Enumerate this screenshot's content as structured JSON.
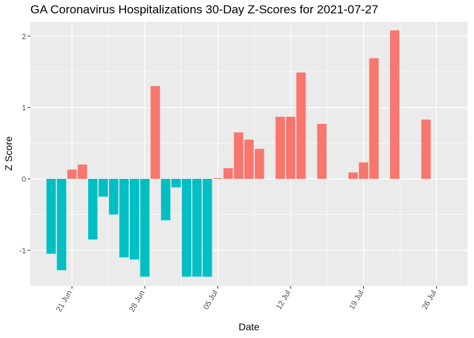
{
  "chart_data": {
    "type": "bar",
    "title": "GA Coronavirus Hospitalizations 30-Day Z-Scores for 2021-07-27",
    "xlabel": "Date",
    "ylabel": "Z Score",
    "ylim": [
      -1.5,
      2.2
    ],
    "x_tick_labels": [
      "21 Jun",
      "28 Jun",
      "05 Jul",
      "12 Jul",
      "19 Jul",
      "26 Jul"
    ],
    "y_tick_labels": [
      "-1",
      "0",
      "1",
      "2"
    ],
    "y_ticks": [
      -1,
      0,
      1,
      2
    ],
    "x_tick_dates": [
      "2021-06-21",
      "2021-06-28",
      "2021-07-05",
      "2021-07-12",
      "2021-07-19",
      "2021-07-26"
    ],
    "x_range": [
      "2021-06-17",
      "2021-07-29"
    ],
    "grid": true,
    "legend": "none",
    "colors": {
      "negative": "#00BFC4",
      "positive": "#F8766D",
      "panel": "#EBEBEB",
      "grid": "#FFFFFF"
    },
    "dates": [
      "2021-06-19",
      "2021-06-20",
      "2021-06-21",
      "2021-06-22",
      "2021-06-23",
      "2021-06-24",
      "2021-06-25",
      "2021-06-26",
      "2021-06-27",
      "2021-06-28",
      "2021-06-29",
      "2021-06-30",
      "2021-07-01",
      "2021-07-02",
      "2021-07-03",
      "2021-07-04",
      "2021-07-05",
      "2021-07-06",
      "2021-07-07",
      "2021-07-08",
      "2021-07-09",
      "2021-07-11",
      "2021-07-12",
      "2021-07-13",
      "2021-07-15",
      "2021-07-18",
      "2021-07-19",
      "2021-07-20",
      "2021-07-22",
      "2021-07-25",
      "2021-07-26"
    ],
    "values": [
      -1.05,
      -1.28,
      0.13,
      0.2,
      -0.85,
      -0.25,
      -0.5,
      -1.1,
      -1.13,
      -1.37,
      1.3,
      -0.58,
      -0.12,
      -1.37,
      -1.37,
      -1.37,
      0.01,
      0.15,
      0.65,
      0.55,
      0.42,
      0.87,
      0.87,
      1.49,
      0.77,
      0.09,
      0.23,
      1.69,
      2.08,
      0.83,
      0.0
    ]
  }
}
